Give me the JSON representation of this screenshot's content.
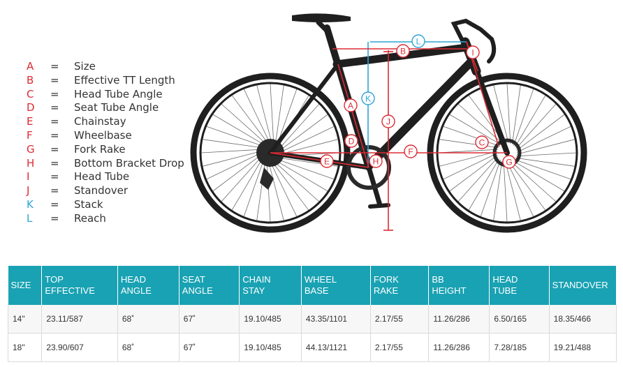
{
  "colors": {
    "red": "#dd2b34",
    "blue": "#2ea4d6",
    "frame": "#1f1f1f",
    "header_bg": "#19a2b3"
  },
  "legend": [
    {
      "letter": "A",
      "desc": "Size",
      "color": "red"
    },
    {
      "letter": "B",
      "desc": "Effective TT Length",
      "color": "red"
    },
    {
      "letter": "C",
      "desc": "Head Tube Angle",
      "color": "red"
    },
    {
      "letter": "D",
      "desc": "Seat Tube Angle",
      "color": "red"
    },
    {
      "letter": "E",
      "desc": "Chainstay",
      "color": "red"
    },
    {
      "letter": "F",
      "desc": "Wheelbase",
      "color": "red"
    },
    {
      "letter": "G",
      "desc": "Fork Rake",
      "color": "red"
    },
    {
      "letter": "H",
      "desc": "Bottom Bracket Drop",
      "color": "red"
    },
    {
      "letter": "I",
      "desc": "Head Tube",
      "color": "red"
    },
    {
      "letter": "J",
      "desc": "Standover",
      "color": "red"
    },
    {
      "letter": "K",
      "desc": "Stack",
      "color": "blue"
    },
    {
      "letter": "L",
      "desc": "Reach",
      "color": "blue"
    }
  ],
  "legend_eq": "=",
  "diagram_labels": {
    "A": "A",
    "B": "B",
    "C": "C",
    "D": "D",
    "E": "E",
    "F": "F",
    "G": "G",
    "H": "H",
    "I": "I",
    "J": "J",
    "K": "K",
    "L": "L"
  },
  "table": {
    "headers": [
      [
        "SIZE"
      ],
      [
        "TOP",
        "EFFECTIVE"
      ],
      [
        "HEAD",
        "ANGLE"
      ],
      [
        "SEAT",
        "ANGLE"
      ],
      [
        "CHAIN",
        "STAY"
      ],
      [
        "WHEEL",
        "BASE"
      ],
      [
        "FORK",
        "RAKE"
      ],
      [
        "BB",
        "HEIGHT"
      ],
      [
        "HEAD",
        "TUBE"
      ],
      [
        "STANDOVER"
      ]
    ],
    "rows": [
      [
        "14\"",
        "23.11/587",
        "68˚",
        "67˚",
        "19.10/485",
        "43.35/1101",
        "2.17/55",
        "11.26/286",
        "6.50/165",
        "18.35/466"
      ],
      [
        "18\"",
        "23.90/607",
        "68˚",
        "67˚",
        "19.10/485",
        "44.13/1121",
        "2.17/55",
        "11.26/286",
        "7.28/185",
        "19.21/488"
      ]
    ]
  }
}
